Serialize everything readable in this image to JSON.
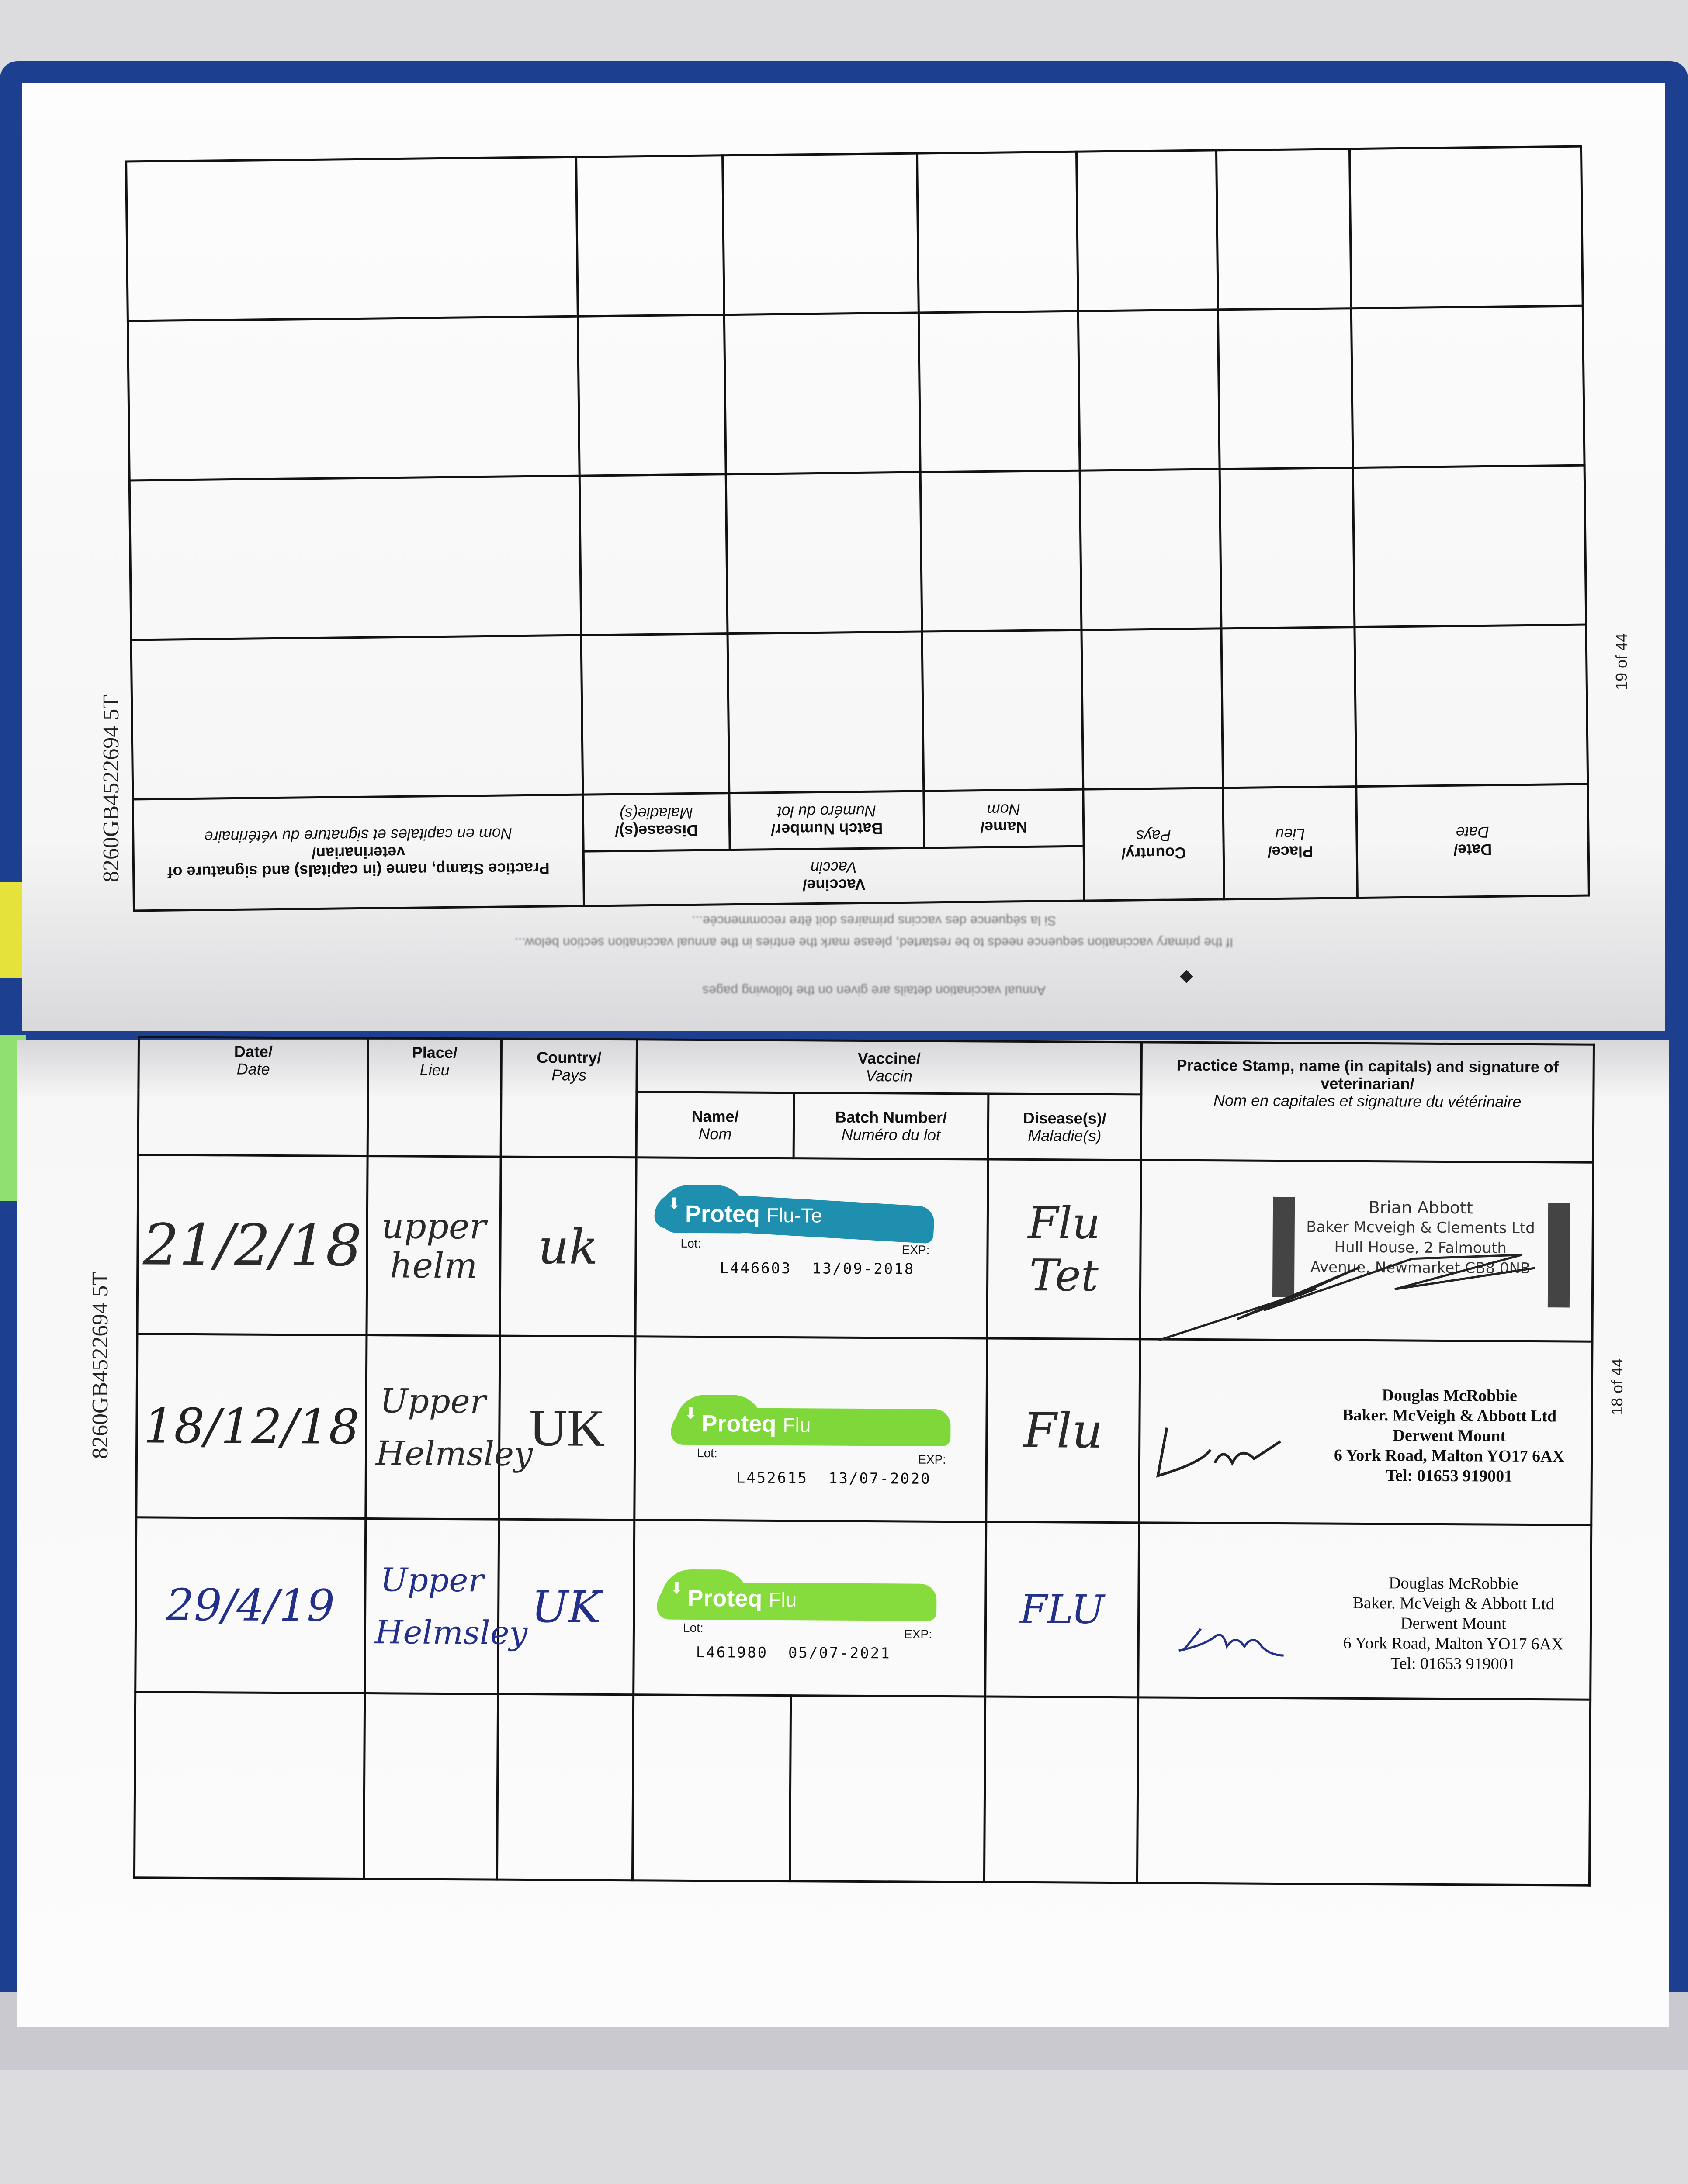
{
  "document": {
    "horse_id": "8260GB4522694 5T",
    "top_page_number": "19 of 44",
    "bottom_page_number": "18 of 44"
  },
  "headers": {
    "date": "Date/",
    "date_fr": "Date",
    "place": "Place/",
    "place_fr": "Lieu",
    "country": "Country/",
    "country_fr": "Pays",
    "vaccine": "Vaccine/",
    "vaccine_fr": "Vaccin",
    "name": "Name/",
    "name_fr": "Nom",
    "batch": "Batch Number/",
    "batch_fr": "Numéro du lot",
    "disease": "Disease(s)/",
    "disease_fr": "Maladie(s)",
    "stamp": "Practice Stamp, name (in capitals) and signature of veterinarian/",
    "stamp_fr": "Nom en capitales et signature du vétérinaire"
  },
  "top_page_notes": [
    "Si la séquence des vaccins primaires doit être recommencée...",
    "If the primary vaccination sequence needs to be restarted, please mark the entries in the annual vaccination section below...",
    "Annual vaccination details are given on the following pages"
  ],
  "records": [
    {
      "date": "21/2/18",
      "place": "upper helm",
      "country": "uk",
      "vaccine_brand": "Proteq",
      "vaccine_variant": "Flu-Te",
      "sticker_color": "#1f8fb0",
      "lot_label": "Lot:",
      "exp_label": "EXP:",
      "lot": "L446603",
      "exp": "13/09-2018",
      "disease": "Flu Tet",
      "stamp": [
        "Brian Abbott",
        "Baker Mcveigh & Clements Ltd",
        "Hull House, 2 Falmouth",
        "Avenue, Newmarket CB8 0NB"
      ],
      "ink": "#2a2a2a"
    },
    {
      "date": "18/12/18",
      "place": "Upper Helmsley",
      "country": "UK",
      "vaccine_brand": "Proteq",
      "vaccine_variant": "Flu",
      "sticker_color": "#7ed83a",
      "lot_label": "Lot:",
      "exp_label": "EXP:",
      "lot": "L452615",
      "exp": "13/07-2020",
      "disease": "Flu",
      "stamp": [
        "Douglas McRobbie",
        "Baker. McVeigh & Abbott Ltd",
        "Derwent Mount",
        "6 York Road, Malton YO17 6AX",
        "Tel: 01653 919001"
      ],
      "ink": "#222222"
    },
    {
      "date": "29/4/19",
      "place": "Upper Helmsley",
      "country": "UK",
      "vaccine_brand": "Proteq",
      "vaccine_variant": "Flu",
      "sticker_color": "#86dc3c",
      "lot_label": "Lot:",
      "exp_label": "EXP:",
      "lot": "L461980",
      "exp": "05/07-2021",
      "disease": "FLU",
      "stamp": [
        "Douglas McRobbie",
        "Baker. McVeigh & Abbott Ltd",
        "Derwent Mount",
        "6 York Road, Malton YO17 6AX",
        "Tel: 01653 919001"
      ],
      "ink": "#23308a"
    }
  ]
}
